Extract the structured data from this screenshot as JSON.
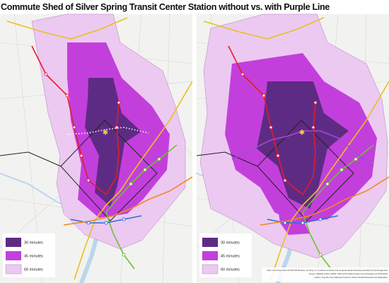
{
  "header": {
    "title": "Commute Shed of Silver Spring Transit Center Station without vs. with Purple Line"
  },
  "panels": [
    {
      "legend": [
        {
          "label": "30 minutes"
        },
        {
          "label": "45 minutes"
        },
        {
          "label": "60 minutes"
        }
      ]
    },
    {
      "legend": [
        {
          "label": "30 minutes"
        },
        {
          "label": "45 minutes"
        },
        {
          "label": "60 minutes"
        }
      ]
    }
  ],
  "footnote": [
    "Note: Commutes start at 8:00 AM Monday morning; on a network of transit and temporal transit schedule provided by transit agencies",
    "Source: WMATA GTFS, DDOT, MTA GTFS 2019, Purple Line Schedule from MTA 2019",
    "Author: Yuqi Wu from National Center for Smart Growth Research and Education"
  ]
}
